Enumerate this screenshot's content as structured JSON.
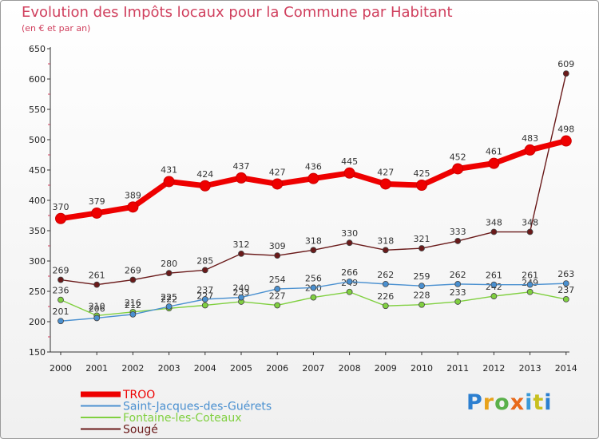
{
  "chart_data": {
    "type": "line",
    "title": "Evolution des Impôts locaux pour la Commune par Habitant",
    "subtitle": "(en € et par an)",
    "categories": [
      "2000",
      "2001",
      "2002",
      "2003",
      "2004",
      "2005",
      "2006",
      "2007",
      "2008",
      "2009",
      "2010",
      "2011",
      "2012",
      "2013",
      "2014"
    ],
    "ylim": [
      150,
      650
    ],
    "yticks": [
      150,
      200,
      250,
      300,
      350,
      400,
      450,
      500,
      550,
      600,
      650
    ],
    "grid": false,
    "legend_position": "bottom-left",
    "series": [
      {
        "name": "TROO",
        "color": "#ee0000",
        "values": [
          370,
          379,
          389,
          431,
          424,
          437,
          427,
          436,
          445,
          427,
          425,
          452,
          461,
          483,
          498
        ]
      },
      {
        "name": "Saint-Jacques-des-Guérets",
        "color": "#4a90d0",
        "values": [
          201,
          206,
          212,
          225,
          237,
          240,
          254,
          256,
          266,
          262,
          259,
          262,
          261,
          261,
          263
        ]
      },
      {
        "name": "Fontaine-les-Coteaux",
        "color": "#80d040",
        "values": [
          236,
          210,
          216,
          222,
          227,
          233,
          227,
          240,
          249,
          226,
          228,
          233,
          242,
          249,
          237
        ]
      },
      {
        "name": "Sougé",
        "color": "#6a1a1a",
        "values": [
          269,
          261,
          269,
          280,
          285,
          312,
          309,
          318,
          330,
          318,
          321,
          333,
          348,
          348,
          609
        ]
      }
    ]
  },
  "logo": {
    "text": "Proxiti"
  }
}
